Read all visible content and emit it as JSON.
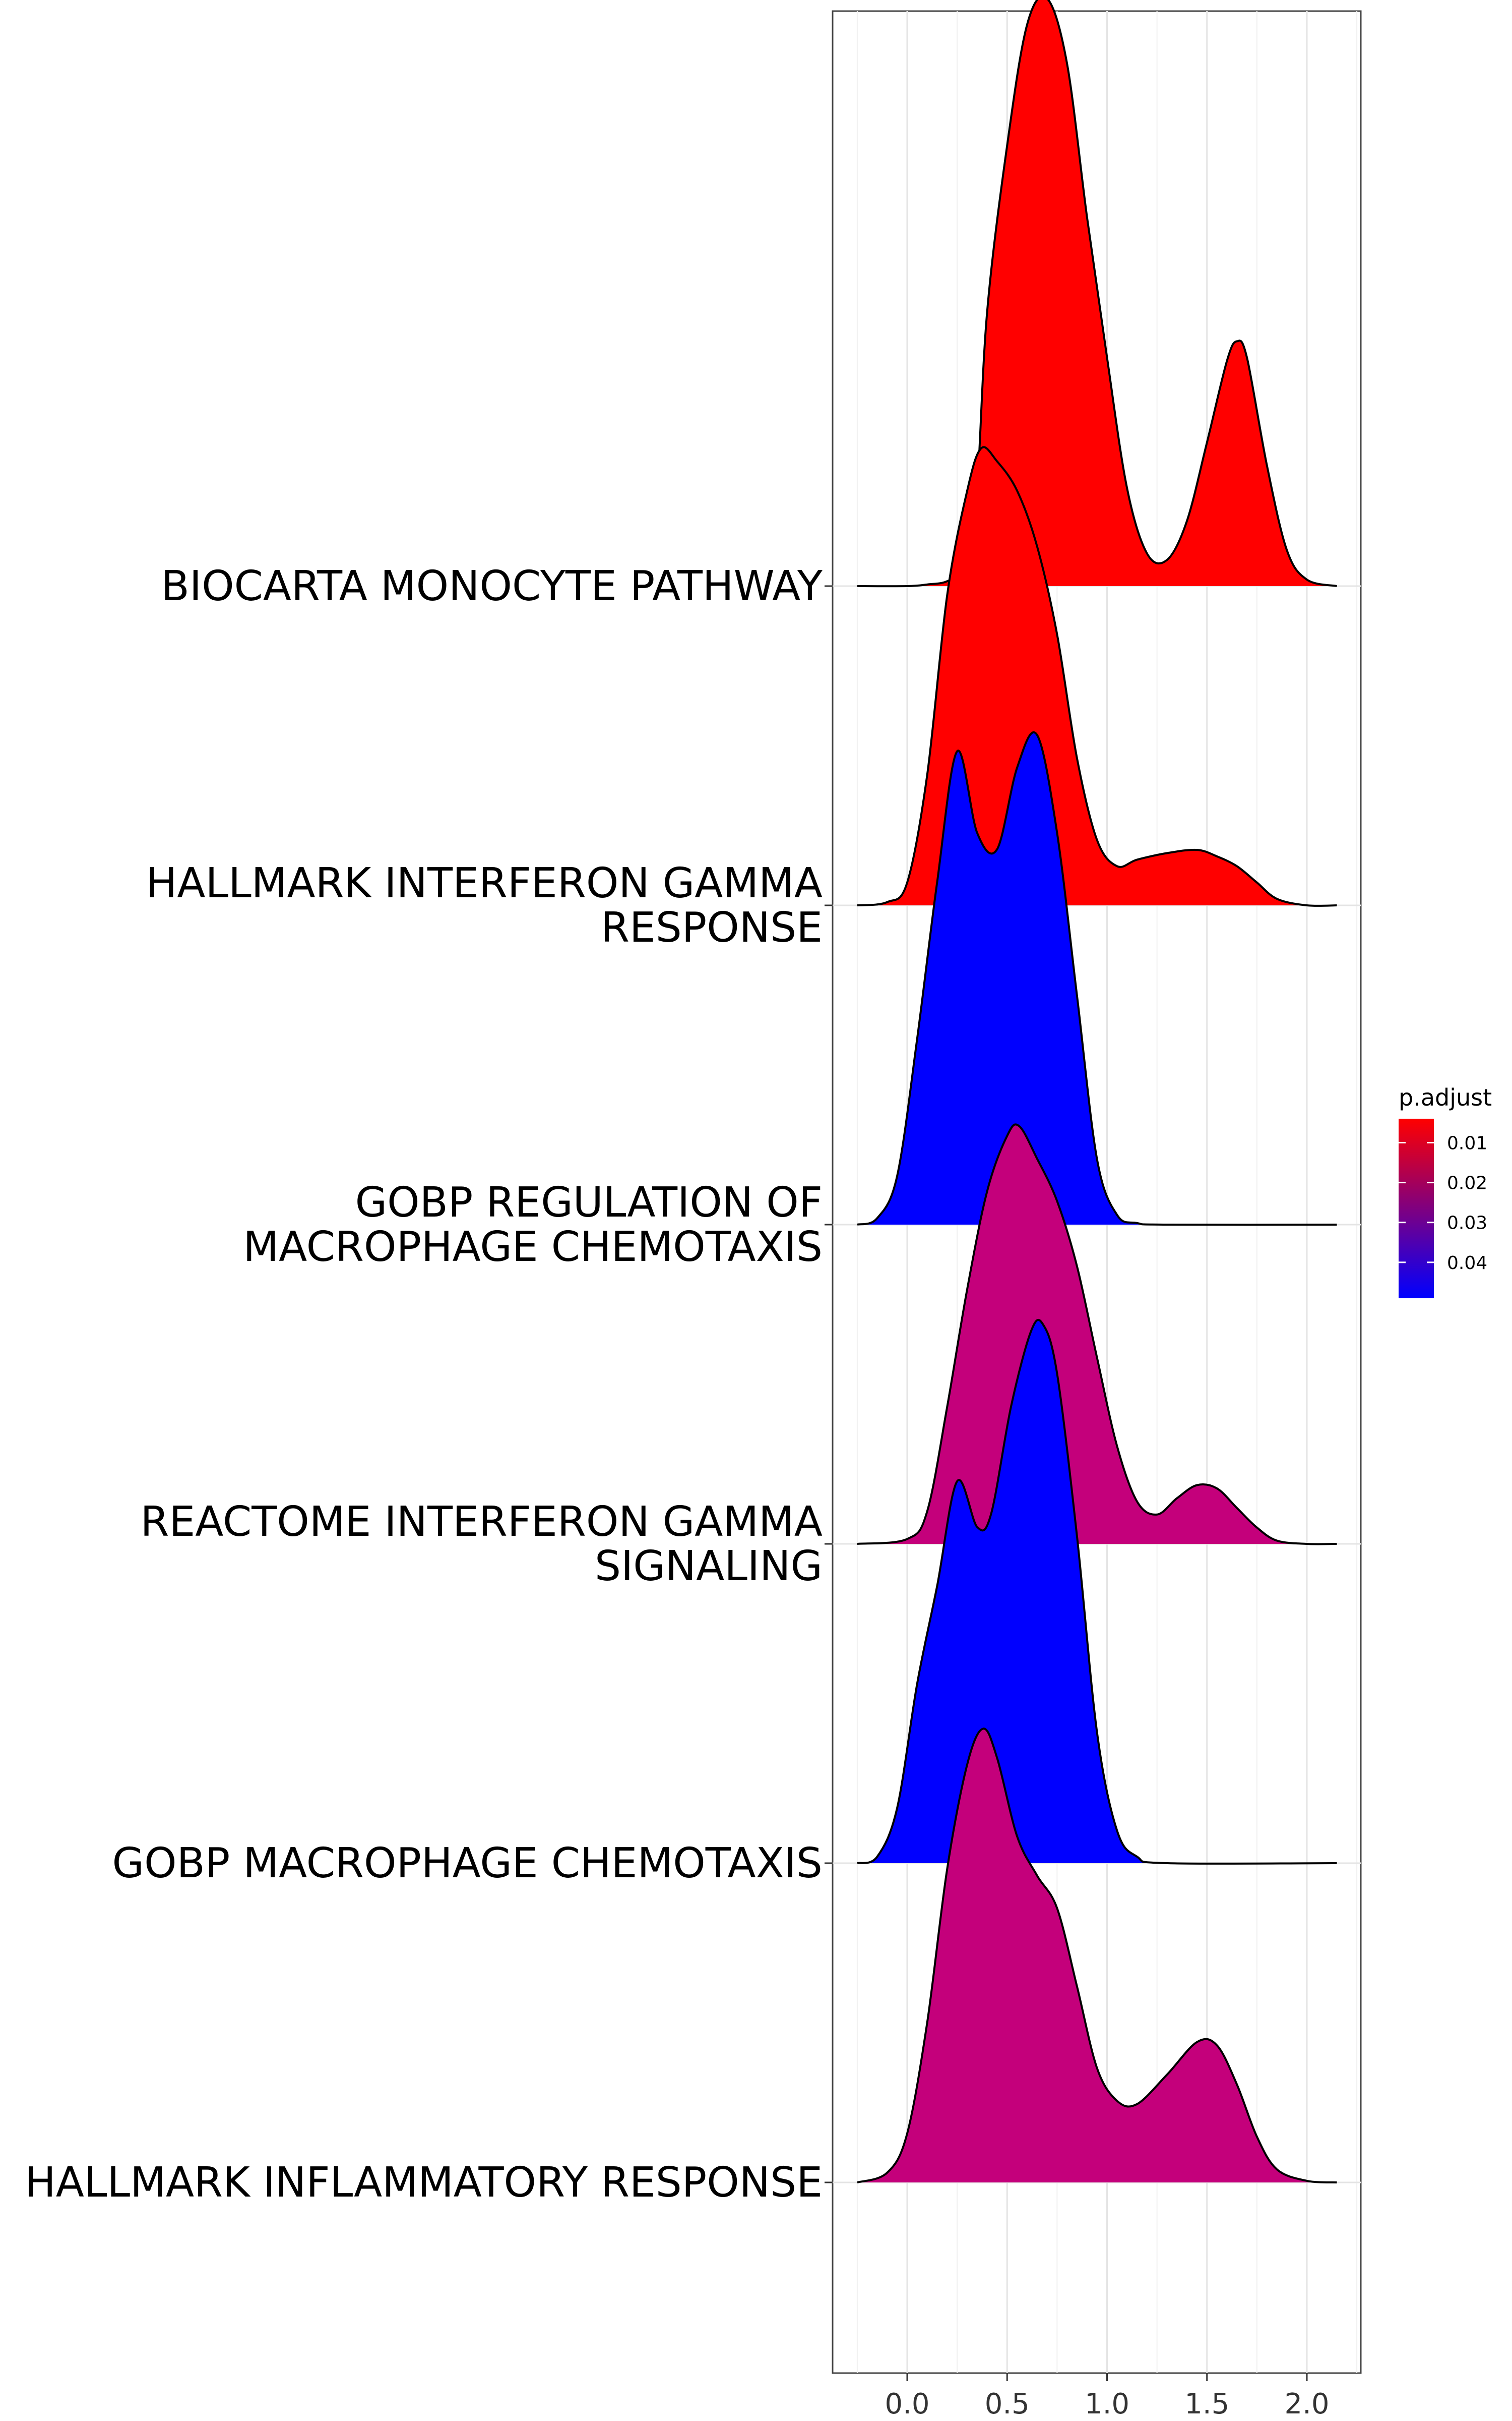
{
  "chart_data": {
    "type": "ridgeline",
    "xlabel": "",
    "ylabel": "",
    "xlim": [
      -0.25,
      2.15
    ],
    "x_ticks": [
      0.0,
      0.5,
      1.0,
      1.5,
      2.0
    ],
    "x_tick_labels": [
      "0.0",
      "0.5",
      "1.0",
      "1.5",
      "2.0"
    ],
    "grid": true,
    "legend": {
      "title": "p.adjust",
      "placement": "right",
      "type": "gradient",
      "range": [
        0.004,
        0.049
      ],
      "ticks": [
        0.01,
        0.02,
        0.03,
        0.04
      ],
      "tick_labels": [
        "0.01",
        "0.02",
        "0.03",
        "0.04"
      ],
      "low_color": "#ff0000",
      "high_color": "#0000ff"
    },
    "series": [
      {
        "name": "BIOCARTA MONOCYTE PATHWAY",
        "label_lines": [
          "BIOCARTA MONOCYTE PATHWAY"
        ],
        "p_adjust": 0.004,
        "color": "#ff0000",
        "density": [
          [
            -0.25,
            0.0
          ],
          [
            0.0,
            0.0
          ],
          [
            0.1,
            0.005
          ],
          [
            0.2,
            0.015
          ],
          [
            0.3,
            0.06
          ],
          [
            0.35,
            0.3
          ],
          [
            0.4,
            0.84
          ],
          [
            0.5,
            1.35
          ],
          [
            0.6,
            1.72
          ],
          [
            0.7,
            1.8
          ],
          [
            0.8,
            1.6
          ],
          [
            0.9,
            1.13
          ],
          [
            1.0,
            0.7
          ],
          [
            1.1,
            0.3
          ],
          [
            1.2,
            0.1
          ],
          [
            1.3,
            0.08
          ],
          [
            1.4,
            0.2
          ],
          [
            1.5,
            0.44
          ],
          [
            1.6,
            0.69
          ],
          [
            1.65,
            0.75
          ],
          [
            1.7,
            0.7
          ],
          [
            1.8,
            0.37
          ],
          [
            1.9,
            0.11
          ],
          [
            2.0,
            0.02
          ],
          [
            2.15,
            0.0
          ]
        ]
      },
      {
        "name": "HALLMARK INTERFERON GAMMA RESPONSE",
        "label_lines": [
          "HALLMARK INTERFERON GAMMA",
          "RESPONSE"
        ],
        "p_adjust": 0.004,
        "color": "#ff0000",
        "density": [
          [
            -0.25,
            0.0
          ],
          [
            -0.1,
            0.01
          ],
          [
            0.0,
            0.07
          ],
          [
            0.1,
            0.4
          ],
          [
            0.2,
            0.95
          ],
          [
            0.3,
            1.27
          ],
          [
            0.37,
            1.4
          ],
          [
            0.45,
            1.36
          ],
          [
            0.55,
            1.27
          ],
          [
            0.65,
            1.1
          ],
          [
            0.75,
            0.83
          ],
          [
            0.85,
            0.45
          ],
          [
            0.95,
            0.2
          ],
          [
            1.05,
            0.12
          ],
          [
            1.15,
            0.14
          ],
          [
            1.3,
            0.16
          ],
          [
            1.45,
            0.17
          ],
          [
            1.55,
            0.15
          ],
          [
            1.65,
            0.12
          ],
          [
            1.75,
            0.07
          ],
          [
            1.85,
            0.02
          ],
          [
            2.0,
            0.0
          ],
          [
            2.15,
            0.0
          ]
        ]
      },
      {
        "name": "GOBP REGULATION OF MACROPHAGE CHEMOTAXIS",
        "label_lines": [
          "GOBP REGULATION OF",
          "MACROPHAGE CHEMOTAXIS"
        ],
        "p_adjust": 0.049,
        "color": "#0000ff",
        "density": [
          [
            -0.25,
            0.0
          ],
          [
            -0.15,
            0.02
          ],
          [
            -0.05,
            0.15
          ],
          [
            0.05,
            0.57
          ],
          [
            0.15,
            1.05
          ],
          [
            0.25,
            1.45
          ],
          [
            0.35,
            1.2
          ],
          [
            0.45,
            1.15
          ],
          [
            0.55,
            1.4
          ],
          [
            0.65,
            1.5
          ],
          [
            0.75,
            1.2
          ],
          [
            0.85,
            0.7
          ],
          [
            0.95,
            0.2
          ],
          [
            1.05,
            0.03
          ],
          [
            1.15,
            0.005
          ],
          [
            1.3,
            0.0
          ],
          [
            2.15,
            0.0
          ]
        ]
      },
      {
        "name": "REACTOME INTERFERON GAMMA SIGNALING",
        "label_lines": [
          "REACTOME INTERFERON GAMMA",
          "SIGNALING"
        ],
        "p_adjust": 0.025,
        "color": "#c4007b",
        "density": [
          [
            -0.25,
            0.0
          ],
          [
            0.0,
            0.015
          ],
          [
            0.1,
            0.1
          ],
          [
            0.2,
            0.42
          ],
          [
            0.3,
            0.78
          ],
          [
            0.4,
            1.08
          ],
          [
            0.5,
            1.25
          ],
          [
            0.56,
            1.28
          ],
          [
            0.65,
            1.18
          ],
          [
            0.75,
            1.05
          ],
          [
            0.85,
            0.85
          ],
          [
            0.95,
            0.57
          ],
          [
            1.05,
            0.3
          ],
          [
            1.15,
            0.13
          ],
          [
            1.25,
            0.09
          ],
          [
            1.35,
            0.14
          ],
          [
            1.45,
            0.18
          ],
          [
            1.55,
            0.17
          ],
          [
            1.65,
            0.11
          ],
          [
            1.75,
            0.05
          ],
          [
            1.85,
            0.01
          ],
          [
            2.0,
            0.0
          ],
          [
            2.15,
            0.0
          ]
        ]
      },
      {
        "name": "GOBP MACROPHAGE CHEMOTAXIS",
        "label_lines": [
          "GOBP MACROPHAGE CHEMOTAXIS"
        ],
        "p_adjust": 0.049,
        "color": "#0000ff",
        "density": [
          [
            -0.25,
            0.0
          ],
          [
            -0.15,
            0.02
          ],
          [
            -0.05,
            0.17
          ],
          [
            0.05,
            0.55
          ],
          [
            0.15,
            0.85
          ],
          [
            0.25,
            1.17
          ],
          [
            0.35,
            1.03
          ],
          [
            0.42,
            1.07
          ],
          [
            0.52,
            1.4
          ],
          [
            0.62,
            1.63
          ],
          [
            0.68,
            1.65
          ],
          [
            0.75,
            1.5
          ],
          [
            0.85,
            1.0
          ],
          [
            0.95,
            0.4
          ],
          [
            1.05,
            0.1
          ],
          [
            1.15,
            0.02
          ],
          [
            1.3,
            0.0
          ],
          [
            2.15,
            0.0
          ]
        ]
      },
      {
        "name": "HALLMARK INFLAMMATORY RESPONSE",
        "label_lines": [
          "HALLMARK INFLAMMATORY RESPONSE"
        ],
        "p_adjust": 0.025,
        "color": "#c4007b",
        "density": [
          [
            -0.25,
            0.0
          ],
          [
            -0.1,
            0.03
          ],
          [
            0.0,
            0.15
          ],
          [
            0.1,
            0.49
          ],
          [
            0.2,
            0.96
          ],
          [
            0.3,
            1.28
          ],
          [
            0.38,
            1.39
          ],
          [
            0.45,
            1.3
          ],
          [
            0.55,
            1.06
          ],
          [
            0.65,
            0.94
          ],
          [
            0.75,
            0.84
          ],
          [
            0.85,
            0.6
          ],
          [
            0.95,
            0.35
          ],
          [
            1.05,
            0.25
          ],
          [
            1.15,
            0.24
          ],
          [
            1.3,
            0.33
          ],
          [
            1.45,
            0.43
          ],
          [
            1.55,
            0.42
          ],
          [
            1.65,
            0.3
          ],
          [
            1.75,
            0.14
          ],
          [
            1.85,
            0.04
          ],
          [
            2.0,
            0.005
          ],
          [
            2.15,
            0.0
          ]
        ]
      }
    ]
  }
}
